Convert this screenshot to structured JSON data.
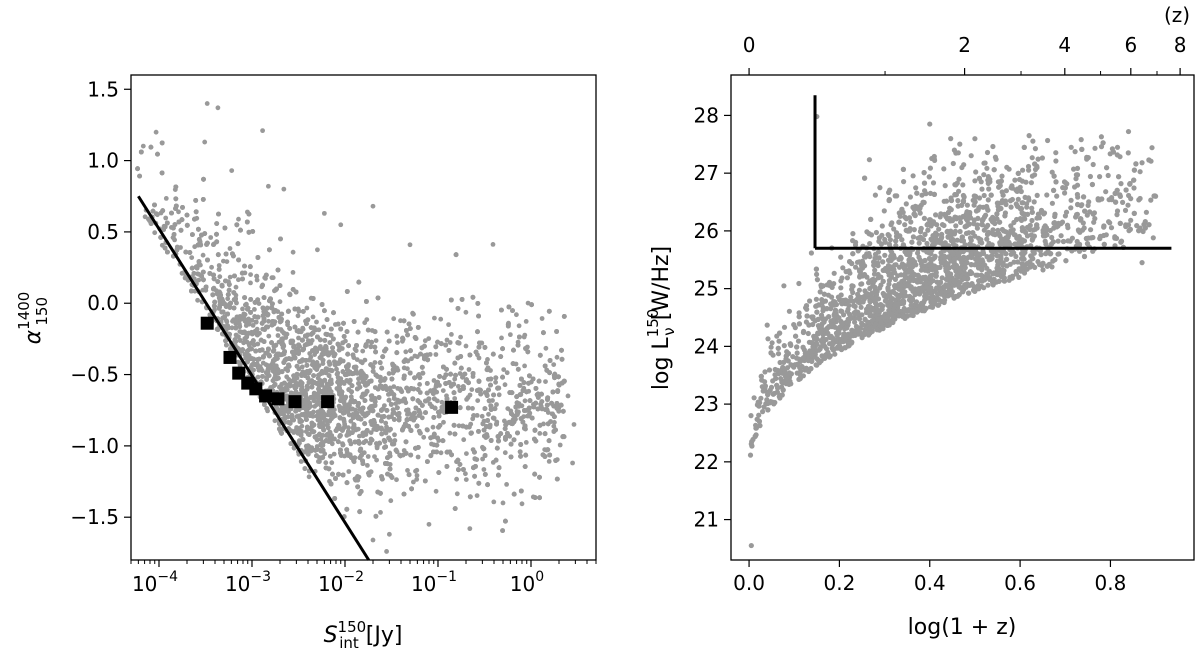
{
  "chart_data": [
    {
      "type": "scatter",
      "xscale": "log",
      "xlim": [
        5e-05,
        5.0
      ],
      "ylim": [
        -1.8,
        1.6
      ],
      "xlabel": {
        "base": "S",
        "sup": "150",
        "sub": "int",
        "unit": " [Jy]"
      },
      "ylabel": {
        "base": "α",
        "sup": "1400",
        "sub": "150"
      },
      "xticks": [
        {
          "value": 0.0001,
          "base": "10",
          "exp": "−4"
        },
        {
          "value": 0.001,
          "base": "10",
          "exp": "−3"
        },
        {
          "value": 0.01,
          "base": "10",
          "exp": "−2"
        },
        {
          "value": 0.1,
          "base": "10",
          "exp": "−1"
        },
        {
          "value": 1,
          "base": "10",
          "exp": "0"
        }
      ],
      "yticks": [
        "1.5",
        "1.0",
        "0.5",
        "0.0",
        "−0.5",
        "−1.0",
        "−1.5"
      ],
      "ytick_values": [
        1.5,
        1.0,
        0.5,
        0.0,
        -0.5,
        -1.0,
        -1.5
      ],
      "grid": false,
      "colors": {
        "scatter": "#999999",
        "median": "#000000",
        "line": "#000000"
      },
      "series": [
        {
          "kind": "points",
          "marker": "circle",
          "color": "#999999",
          "cloud_median_curve": [
            [
              0.0001,
              0.1
            ],
            [
              0.0003,
              -0.3
            ],
            [
              0.001,
              -0.55
            ],
            [
              0.003,
              -0.65
            ],
            [
              0.01,
              -0.7
            ],
            [
              0.1,
              -0.72
            ],
            [
              1,
              -0.72
            ],
            [
              3,
              -0.72
            ]
          ],
          "cloud_spread": 0.35,
          "outliers": [
            [
              0.00033,
              1.4
            ],
            [
              0.00043,
              1.37
            ],
            [
              0.0013,
              1.21
            ],
            [
              0.00031,
              1.13
            ],
            [
              0.0015,
              0.82
            ],
            [
              0.0022,
              0.8
            ],
            [
              0.006,
              0.63
            ],
            [
              0.009,
              0.55
            ],
            [
              0.02,
              0.68
            ],
            [
              0.05,
              0.41
            ],
            [
              0.13,
              -0.15
            ],
            [
              0.2,
              -0.3
            ],
            [
              0.6,
              -0.22
            ],
            [
              2.5,
              -0.65
            ],
            [
              2.9,
              -0.85
            ],
            [
              2.8,
              -1.12
            ],
            [
              0.03,
              -1.62
            ],
            [
              0.028,
              -1.74
            ],
            [
              0.02,
              -1.66
            ],
            [
              0.08,
              -1.55
            ],
            [
              0.22,
              -1.58
            ],
            [
              0.5,
              -1.4
            ]
          ]
        },
        {
          "kind": "medians",
          "marker": "square",
          "color": "#000000",
          "x": [
            0.00033,
            0.00058,
            0.00072,
            0.0009,
            0.0011,
            0.0014,
            0.0019,
            0.0029,
            0.0065,
            0.14
          ],
          "y": [
            -0.14,
            -0.38,
            -0.49,
            -0.56,
            -0.6,
            -0.65,
            -0.67,
            -0.69,
            -0.69,
            -0.73
          ]
        },
        {
          "kind": "line",
          "color": "#000000",
          "x": [
            6e-05,
            0.018
          ],
          "y": [
            0.75,
            -1.8
          ]
        }
      ]
    },
    {
      "type": "scatter",
      "xlim": [
        -0.04,
        0.985
      ],
      "ylim": [
        20.3,
        28.7
      ],
      "xlabel": {
        "text": "log(1 + z)"
      },
      "ylabel": {
        "base": "log L",
        "sub": "ν",
        "sup": "150",
        "unit": " [W/Hz]"
      },
      "xticks": [
        "0.0",
        "0.2",
        "0.4",
        "0.6",
        "0.8"
      ],
      "xtick_values": [
        0.0,
        0.2,
        0.4,
        0.6,
        0.8
      ],
      "yticks": [
        "21",
        "22",
        "23",
        "24",
        "25",
        "26",
        "27",
        "28"
      ],
      "ytick_values": [
        21,
        22,
        23,
        24,
        25,
        26,
        27,
        28
      ],
      "top_axis": {
        "label": "(z)",
        "ticks": [
          "0",
          "2",
          "4",
          "6",
          "8"
        ],
        "tick_z_values": [
          0,
          2,
          4,
          6,
          8
        ]
      },
      "grid": false,
      "colors": {
        "scatter": "#999999",
        "line": "#000000"
      },
      "series": [
        {
          "kind": "points",
          "marker": "circle",
          "color": "#999999",
          "outliers": [
            [
              0.005,
              20.55
            ],
            [
              0.15,
              27.98
            ],
            [
              0.84,
              27.72
            ],
            [
              0.87,
              27.18
            ],
            [
              0.78,
              27.63
            ],
            [
              0.9,
              26.6
            ],
            [
              0.4,
              27.85
            ],
            [
              0.62,
              27.65
            ],
            [
              0.87,
              25.45
            ]
          ]
        },
        {
          "kind": "cut_lines",
          "color": "#000000",
          "vertical": {
            "x": 0.146,
            "y": [
              25.7,
              28.35
            ]
          },
          "horizontal": {
            "y": 25.7,
            "x": [
              0.146,
              0.935
            ]
          }
        }
      ]
    }
  ]
}
